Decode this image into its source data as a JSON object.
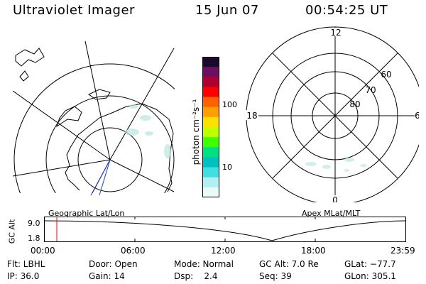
{
  "header": {
    "title": "Ultraviolet Imager",
    "date": "15 Jun 07",
    "time": "00:54:25 UT"
  },
  "colorbar": {
    "unit": "photon cm⁻²s⁻¹",
    "ticks": [
      "100",
      "10"
    ],
    "colors": [
      "#1a0a2a",
      "#6a1060",
      "#b00030",
      "#ff0000",
      "#ff6000",
      "#ffa000",
      "#ffe000",
      "#c0ff00",
      "#40ff00",
      "#00e080",
      "#00c0c0",
      "#40e0e0",
      "#b0f0f0",
      "#e8fafa"
    ]
  },
  "polar": {
    "hour_labels": [
      "12",
      "18",
      "6",
      "0"
    ],
    "lat_labels": [
      "60",
      "70",
      "80"
    ]
  },
  "altitude_plot": {
    "left_label": "Geographic Lat/Lon",
    "right_label": "Apex MLat/MLT",
    "ylabel": "GC Alt",
    "yticks": [
      "9.0",
      "1.8"
    ],
    "xticks": [
      "00:00",
      "06:00",
      "12:00",
      "18:00",
      "23:59"
    ],
    "marker_color": "#ff0000"
  },
  "footer": {
    "flt": "Flt: LBHL",
    "ip": "IP: 36.0",
    "door": "Door: Open",
    "gain": "Gain: 14",
    "mode": "Mode: Normal",
    "dsp": "Dsp:    2.4",
    "gcalt": "GC Alt: 7.0 Re",
    "seq": "Seq: 39",
    "glat": "GLat: −77.7",
    "glon": "GLon: 305.1"
  }
}
